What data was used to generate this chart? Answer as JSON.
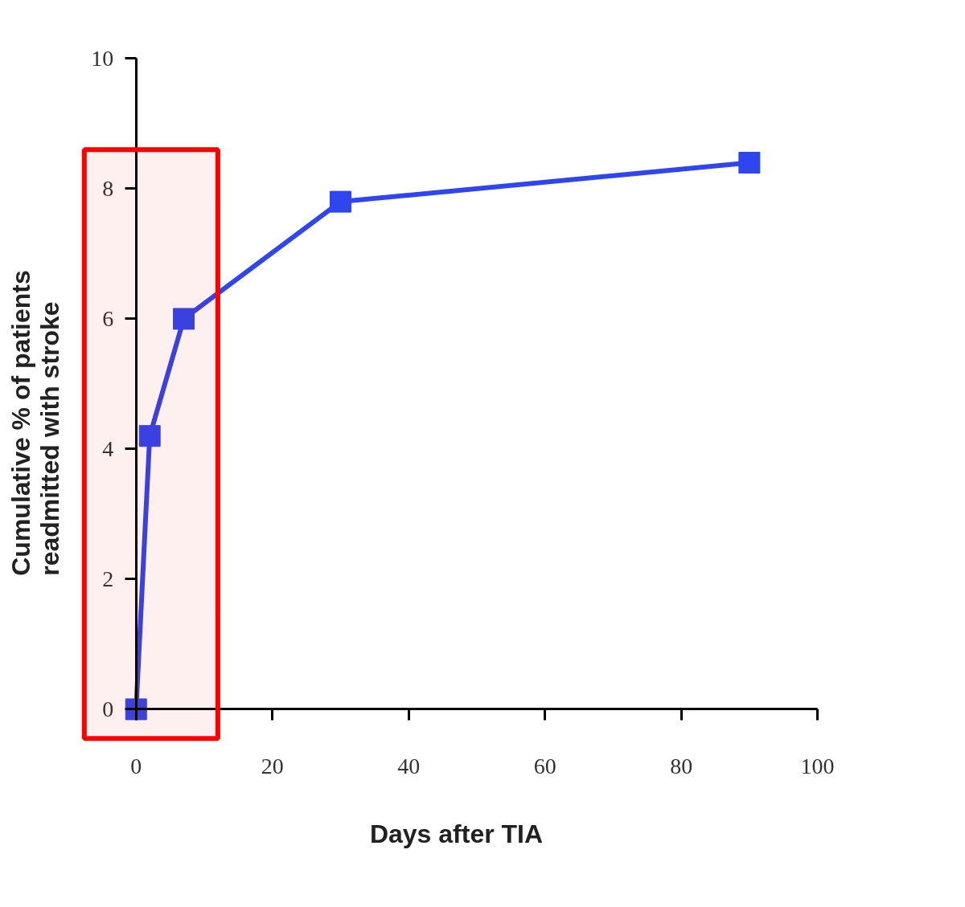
{
  "chart_data": {
    "type": "line",
    "xlabel": "Days after TIA",
    "ylabel": "Cumulative % of patients\nreadmitted with stroke",
    "x": [
      0,
      2,
      7,
      30,
      90
    ],
    "series": [
      {
        "color": "#2f45f0",
        "values": [
          0,
          4.2,
          6.0,
          7.8,
          8.4
        ]
      }
    ],
    "xlim": [
      0,
      100
    ],
    "xticks": [
      0,
      20,
      40,
      60,
      80,
      100
    ],
    "ylim": [
      0,
      10
    ],
    "yticks": [
      0,
      2,
      4,
      6,
      8,
      10
    ],
    "marker": "square",
    "grid": false,
    "bands": [
      {
        "axis": "x",
        "from": -7.6,
        "to": 12,
        "color": "#ff0000"
      }
    ]
  }
}
